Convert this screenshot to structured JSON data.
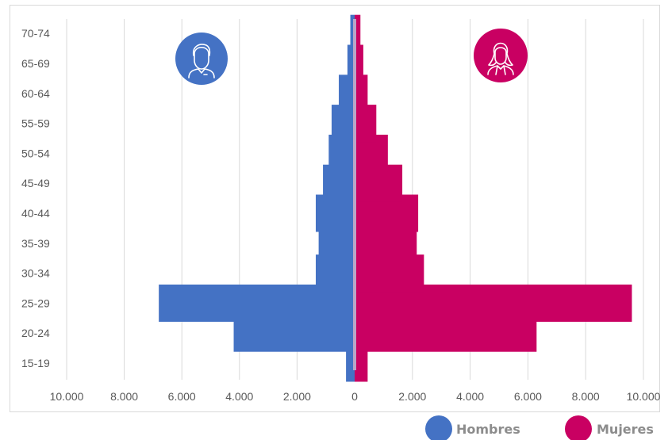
{
  "chart_data": {
    "type": "bar",
    "orientation": "horizontal",
    "subtype": "population-pyramid",
    "categories": [
      "15-19",
      "20-24",
      "25-29",
      "30-34",
      "35-39",
      "40-44",
      "45-49",
      "50-54",
      "55-59",
      "60-64",
      "65-69",
      "70-74"
    ],
    "series": [
      {
        "name": "Hombres",
        "color": "#4472c4",
        "side": "left",
        "values": [
          300,
          4200,
          6800,
          1350,
          1250,
          1350,
          1100,
          900,
          800,
          550,
          250,
          150
        ]
      },
      {
        "name": "Mujeres",
        "color": "#c90062",
        "side": "right",
        "values": [
          450,
          6300,
          9600,
          2400,
          2150,
          2200,
          1650,
          1150,
          750,
          450,
          300,
          200
        ]
      }
    ],
    "xlim": [
      -10000,
      10000
    ],
    "x_ticks": [
      -10000,
      -8000,
      -6000,
      -4000,
      -2000,
      0,
      2000,
      4000,
      6000,
      8000,
      10000
    ],
    "x_tick_labels": [
      "10.000",
      "8.000",
      "6.000",
      "4.000",
      "2.000",
      "0",
      "2.000",
      "4.000",
      "6.000",
      "8.000",
      "10.000"
    ],
    "grid": "vertical",
    "legend_position": "bottom-right",
    "icons": {
      "left": "man-icon",
      "right": "woman-icon"
    },
    "center_line_color": "#b9a6c7"
  }
}
